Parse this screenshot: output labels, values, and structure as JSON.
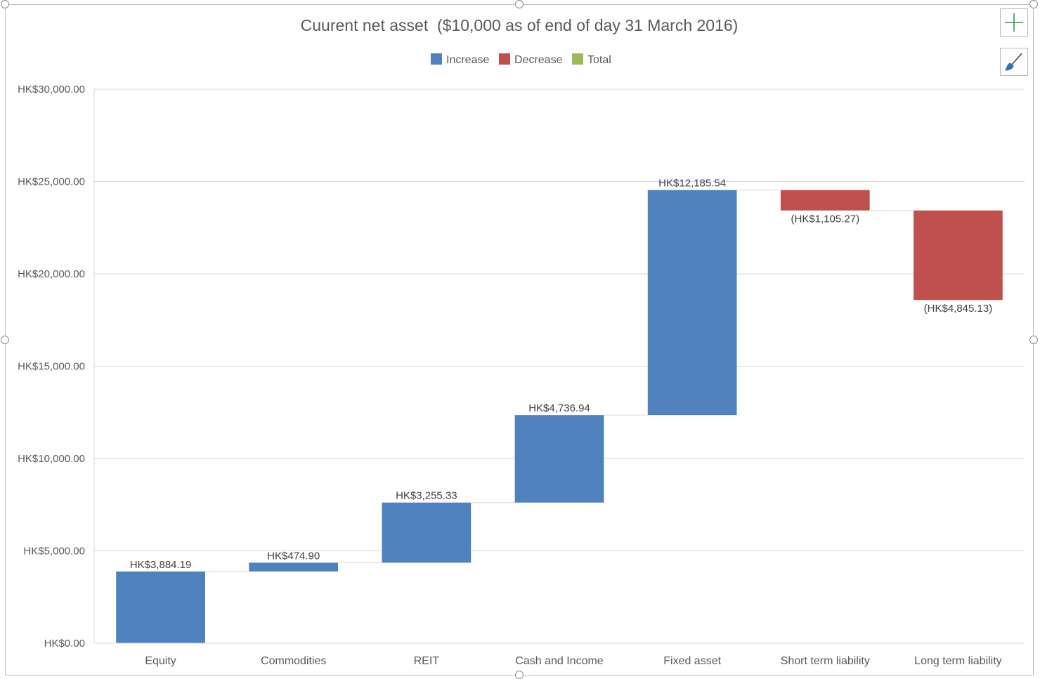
{
  "chart_data": {
    "type": "waterfall",
    "title": "Cuurent net asset  ($10,000 as of end of day 31 March 2016)",
    "legend": {
      "placement": "top",
      "items": [
        {
          "label": "Increase",
          "color": "#4f81bd"
        },
        {
          "label": "Decrease",
          "color": "#c0504d"
        },
        {
          "label": "Total",
          "color": "#9bbb59"
        }
      ]
    },
    "categories": [
      "Equity",
      "Commodities",
      "REIT",
      "Cash and Income",
      "Fixed asset",
      "Short term liability",
      "Long term liability"
    ],
    "values": [
      3884.19,
      474.9,
      3255.33,
      4736.94,
      12185.54,
      -1105.27,
      -4845.13
    ],
    "data_labels": [
      "HK$3,884.19",
      "HK$474.90",
      "HK$3,255.33",
      "HK$4,736.94",
      "HK$12,185.54",
      "(HK$1,105.27)",
      "(HK$4,845.13)"
    ],
    "y_ticks": [
      0,
      5000,
      10000,
      15000,
      20000,
      25000,
      30000
    ],
    "y_tick_labels": [
      "HK$0.00",
      "HK$5,000.00",
      "HK$10,000.00",
      "HK$15,000.00",
      "HK$20,000.00",
      "HK$25,000.00",
      "HK$30,000.00"
    ],
    "ylim": [
      0,
      30000
    ],
    "xlabel": "",
    "ylabel": "",
    "grid": true,
    "connector_lines": true
  },
  "toolbar": {
    "add_element_icon": "plus-icon",
    "chart_styles_icon": "paintbrush-icon"
  }
}
